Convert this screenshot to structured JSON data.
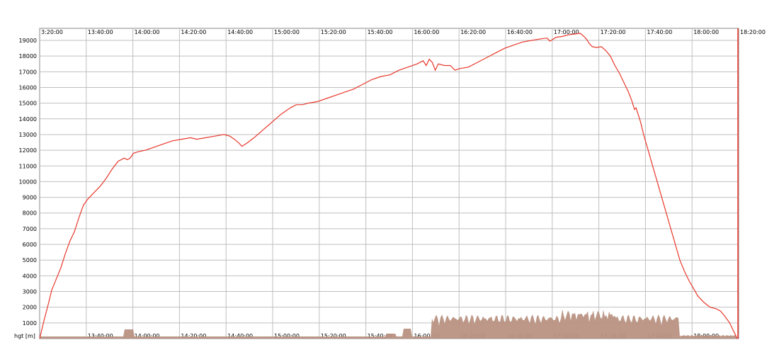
{
  "chart_data": {
    "type": "line",
    "title": "",
    "xlabel": "",
    "ylabel": "hgt [m]",
    "ylim": [
      0,
      19500
    ],
    "yticks": [
      1000,
      2000,
      3000,
      4000,
      5000,
      6000,
      7000,
      8000,
      9000,
      10000,
      11000,
      12000,
      13000,
      14000,
      15000,
      16000,
      17000,
      18000,
      19000
    ],
    "top_ticks": [
      "3:20:00",
      "13:40:00",
      "14:00:00",
      "14:20:00",
      "14:40:00",
      "15:00:00",
      "15:20:00",
      "15:40:00",
      "16:00:00",
      "16:20:00",
      "16:40:00",
      "17:00:00",
      "17:20:00",
      "17:40:00",
      "18:00:00",
      "18:20:00"
    ],
    "bottom_ticks": [
      "13:40:00",
      "14:00:00",
      "14:20:00",
      "14:40:00",
      "15:00:00",
      "15:20:00",
      "15:40:00",
      "16:00:00",
      "16:20:00",
      "16:40:00",
      "17:00:00",
      "17:20:00",
      "17:40:00",
      "18:00:00"
    ],
    "grid": true,
    "colors": {
      "height": "#e8382b",
      "area": "#b99282",
      "grid": "#bfbfbf"
    },
    "series": [
      {
        "values": [
          [
            0,
            0
          ],
          [
            3,
            1200
          ],
          [
            6,
            2300
          ],
          [
            8,
            3100
          ],
          [
            11,
            3800
          ],
          [
            14,
            4500
          ],
          [
            17,
            5400
          ],
          [
            20,
            6200
          ],
          [
            23,
            6800
          ],
          [
            26,
            7700
          ],
          [
            29,
            8500
          ],
          [
            32,
            8900
          ],
          [
            36,
            9300
          ],
          [
            40,
            9700
          ],
          [
            44,
            10200
          ],
          [
            48,
            10800
          ],
          [
            52,
            11300
          ],
          [
            56,
            11500
          ],
          [
            58,
            11400
          ],
          [
            60,
            11500
          ],
          [
            62,
            11800
          ],
          [
            65,
            11900
          ],
          [
            70,
            12000
          ],
          [
            76,
            12200
          ],
          [
            82,
            12400
          ],
          [
            88,
            12600
          ],
          [
            94,
            12700
          ],
          [
            100,
            12800
          ],
          [
            104,
            12700
          ],
          [
            110,
            12800
          ],
          [
            116,
            12900
          ],
          [
            122,
            13000
          ],
          [
            126,
            12900
          ],
          [
            129,
            12700
          ],
          [
            132,
            12450
          ],
          [
            134,
            12250
          ],
          [
            138,
            12500
          ],
          [
            142,
            12800
          ],
          [
            148,
            13300
          ],
          [
            154,
            13800
          ],
          [
            160,
            14300
          ],
          [
            166,
            14700
          ],
          [
            170,
            14900
          ],
          [
            174,
            14900
          ],
          [
            178,
            15000
          ],
          [
            184,
            15100
          ],
          [
            190,
            15300
          ],
          [
            196,
            15500
          ],
          [
            202,
            15700
          ],
          [
            208,
            15900
          ],
          [
            214,
            16200
          ],
          [
            220,
            16500
          ],
          [
            226,
            16700
          ],
          [
            232,
            16800
          ],
          [
            238,
            17100
          ],
          [
            244,
            17300
          ],
          [
            250,
            17500
          ],
          [
            254,
            17700
          ],
          [
            256,
            17400
          ],
          [
            258,
            17800
          ],
          [
            260,
            17600
          ],
          [
            262,
            17100
          ],
          [
            264,
            17500
          ],
          [
            268,
            17400
          ],
          [
            272,
            17400
          ],
          [
            275,
            17100
          ],
          [
            278,
            17200
          ],
          [
            284,
            17300
          ],
          [
            290,
            17600
          ],
          [
            296,
            17900
          ],
          [
            302,
            18200
          ],
          [
            308,
            18500
          ],
          [
            314,
            18700
          ],
          [
            320,
            18900
          ],
          [
            326,
            19000
          ],
          [
            332,
            19100
          ],
          [
            336,
            19150
          ],
          [
            338,
            18950
          ],
          [
            342,
            19200
          ],
          [
            346,
            19250
          ],
          [
            350,
            19350
          ],
          [
            354,
            19400
          ],
          [
            358,
            19450
          ],
          [
            360,
            19300
          ],
          [
            362,
            19100
          ],
          [
            364,
            18800
          ],
          [
            366,
            18600
          ],
          [
            369,
            18550
          ],
          [
            372,
            18600
          ],
          [
            375,
            18350
          ],
          [
            378,
            18000
          ],
          [
            381,
            17400
          ],
          [
            384,
            16900
          ],
          [
            387,
            16300
          ],
          [
            390,
            15700
          ],
          [
            392,
            15200
          ],
          [
            394,
            14600
          ],
          [
            395,
            14700
          ],
          [
            396,
            14400
          ],
          [
            398,
            13800
          ],
          [
            400,
            13000
          ],
          [
            403,
            12000
          ],
          [
            406,
            11000
          ],
          [
            409,
            10000
          ],
          [
            412,
            9000
          ],
          [
            415,
            8000
          ],
          [
            418,
            7000
          ],
          [
            421,
            6000
          ],
          [
            424,
            5000
          ],
          [
            427,
            4300
          ],
          [
            430,
            3700
          ],
          [
            433,
            3200
          ],
          [
            436,
            2700
          ],
          [
            440,
            2300
          ],
          [
            444,
            2000
          ],
          [
            448,
            1900
          ],
          [
            451,
            1750
          ],
          [
            454,
            1400
          ],
          [
            457,
            1000
          ],
          [
            460,
            400
          ],
          [
            462,
            0
          ]
        ]
      }
    ]
  }
}
